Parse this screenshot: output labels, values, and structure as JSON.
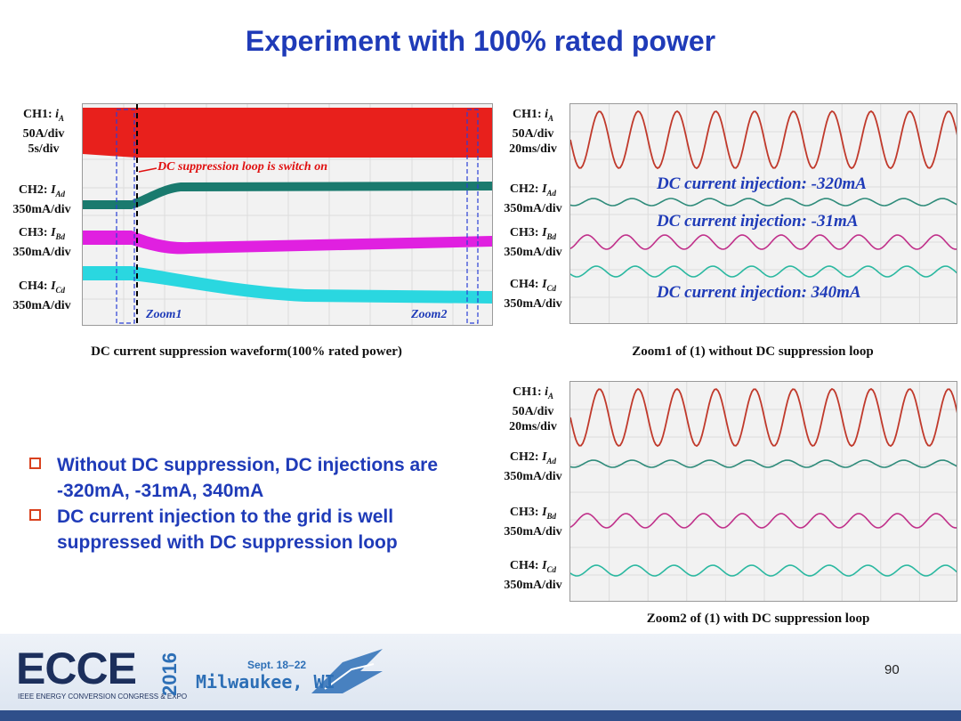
{
  "title": "Experiment with 100% rated power",
  "main_scope": {
    "labels": {
      "ch1": {
        "name": "CH1: ",
        "var": "i",
        "sub": "A",
        "scale": "50A/div",
        "time": "5s/div"
      },
      "ch2": {
        "name": "CH2: ",
        "var": "I",
        "sub": "Ad",
        "scale": "350mA/div"
      },
      "ch3": {
        "name": "CH3: ",
        "var": "I",
        "sub": "Bd",
        "scale": "350mA/div"
      },
      "ch4": {
        "name": "CH4: ",
        "var": "I",
        "sub": "Cd",
        "scale": "350mA/div"
      }
    },
    "annotation": "DC suppression loop is switch on",
    "zoom1": "Zoom1",
    "zoom2": "Zoom2",
    "caption": "DC current suppression waveform(100% rated power)"
  },
  "zoom1_scope": {
    "labels": {
      "ch1": {
        "name": "CH1: ",
        "var": "i",
        "sub": "A",
        "scale": "50A/div",
        "time": "20ms/div"
      },
      "ch2": {
        "name": "CH2: ",
        "var": "I",
        "sub": "Ad",
        "scale": "350mA/div"
      },
      "ch3": {
        "name": "CH3: ",
        "var": "I",
        "sub": "Bd",
        "scale": "350mA/div"
      },
      "ch4": {
        "name": "CH4: ",
        "var": "I",
        "sub": "Cd",
        "scale": "350mA/div"
      }
    },
    "annotations": [
      "DC current injection: -320mA",
      "DC current injection: -31mA",
      "DC current injection: 340mA"
    ],
    "caption": "Zoom1 of (1) without DC suppression loop"
  },
  "zoom2_scope": {
    "labels": {
      "ch1": {
        "name": "CH1: ",
        "var": "i",
        "sub": "A",
        "scale": "50A/div",
        "time": "20ms/div"
      },
      "ch2": {
        "name": "CH2: ",
        "var": "I",
        "sub": "Ad",
        "scale": "350mA/div"
      },
      "ch3": {
        "name": "CH3: ",
        "var": "I",
        "sub": "Bd",
        "scale": "350mA/div"
      },
      "ch4": {
        "name": "CH4: ",
        "var": "I",
        "sub": "Cd",
        "scale": "350mA/div"
      }
    },
    "caption": "Zoom2 of (1) with DC suppression loop"
  },
  "bullets": [
    "Without DC suppression, DC injections are -320mA, -31mA, 340mA",
    "DC current injection to the grid is well suppressed with DC suppression loop"
  ],
  "footer": {
    "logo": "ECCE",
    "year": "2016",
    "tagline": "IEEE ENERGY CONVERSION CONGRESS & EXPO",
    "dates": "Sept. 18–22",
    "city": "Milwaukee, WI",
    "page_number": "90"
  },
  "colors": {
    "title": "#1f3bb8",
    "ch1": "#e8201c",
    "ch2": "#1a7a6e",
    "ch3": "#e020e0",
    "ch4": "#2ad7e0",
    "zoom_ch1": "#c0392b",
    "zoom_ch2": "#2e8b7a",
    "zoom_ch3": "#c0308a",
    "zoom_ch4": "#2ab8a0",
    "annotation_red": "#e01010",
    "annotation_blue": "#1f3bb8",
    "bullet_box": "#d9411e"
  }
}
